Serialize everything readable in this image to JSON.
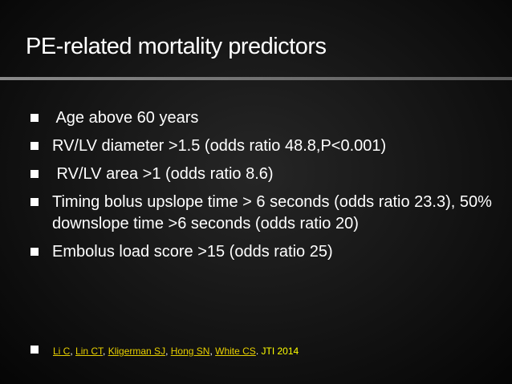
{
  "slide": {
    "title": "PE-related mortality predictors",
    "bullets": [
      " Age above 60 years",
      "RV/LV diameter >1.5 (odds ratio 48.8,P<0.001)",
      " RV/LV area >1 (odds ratio 8.6)",
      "Timing bolus upslope time > 6 seconds (odds ratio 23.3), 50% downslope time >6 seconds (odds ratio 20)",
      "Embolus load score >15 (odds ratio 25)"
    ],
    "reference": {
      "authors": [
        "Li C",
        "Lin CT",
        "Kligerman SJ",
        "Hong SN",
        "White CS"
      ],
      "separator": ", ",
      "period": ". ",
      "journal": "JTI 2014"
    }
  }
}
